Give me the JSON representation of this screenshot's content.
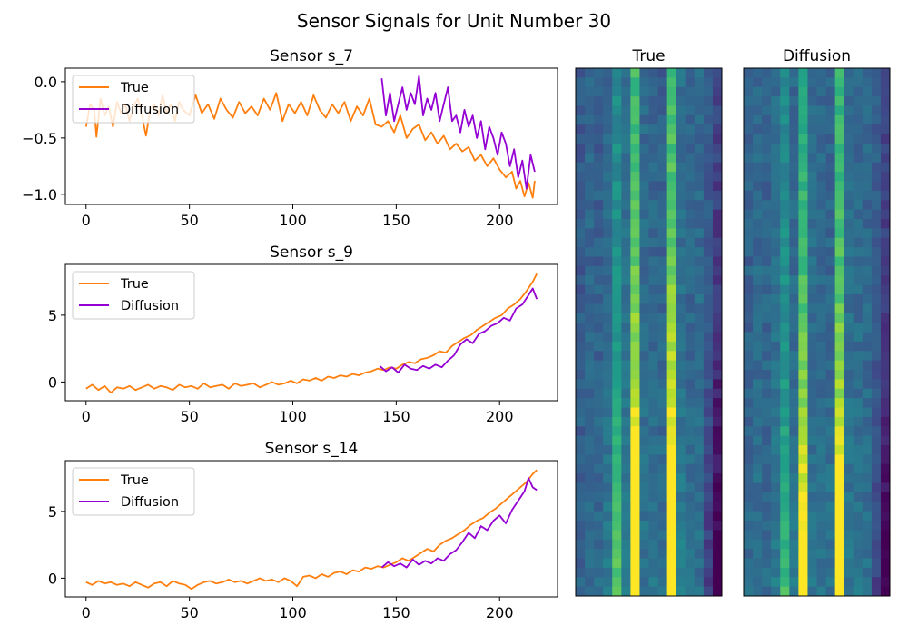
{
  "figure": {
    "suptitle": "Sensor Signals for Unit Number 30"
  },
  "chart_data": [
    {
      "type": "line",
      "title": "Sensor s_7",
      "xlabel": "",
      "ylabel": "",
      "xlim": [
        -10,
        228
      ],
      "ylim": [
        -1.09,
        0.12
      ],
      "xticks": [
        0,
        50,
        100,
        150,
        200
      ],
      "yticks": [
        0.0,
        -0.5,
        -1.0
      ],
      "ytick_labels": [
        "0.0",
        "−0.5",
        "−1.0"
      ],
      "grid": false,
      "legend": "top-left",
      "series": [
        {
          "name": "True",
          "color": "#ff7f0e",
          "x": [
            0,
            2,
            4,
            5,
            7,
            9,
            11,
            13,
            15,
            17,
            19,
            21,
            23,
            25,
            27,
            29,
            31,
            33,
            35,
            37,
            39,
            41,
            43,
            45,
            47,
            50,
            53,
            56,
            59,
            62,
            65,
            68,
            71,
            74,
            77,
            80,
            83,
            86,
            89,
            92,
            95,
            98,
            101,
            104,
            107,
            110,
            113,
            116,
            119,
            122,
            125,
            128,
            131,
            134,
            137,
            140,
            143,
            146,
            149,
            152,
            155,
            158,
            161,
            164,
            167,
            170,
            173,
            176,
            179,
            182,
            185,
            188,
            191,
            194,
            197,
            200,
            203,
            206,
            208,
            210,
            212,
            214,
            216,
            217
          ],
          "y": [
            -0.4,
            -0.2,
            -0.25,
            -0.49,
            -0.15,
            -0.3,
            -0.22,
            -0.4,
            -0.18,
            -0.28,
            -0.2,
            -0.35,
            -0.22,
            -0.15,
            -0.3,
            -0.48,
            -0.25,
            -0.2,
            -0.3,
            -0.12,
            -0.28,
            -0.2,
            -0.35,
            -0.18,
            -0.25,
            -0.3,
            -0.12,
            -0.28,
            -0.2,
            -0.33,
            -0.15,
            -0.25,
            -0.32,
            -0.18,
            -0.28,
            -0.22,
            -0.3,
            -0.15,
            -0.25,
            -0.1,
            -0.35,
            -0.2,
            -0.28,
            -0.18,
            -0.3,
            -0.12,
            -0.25,
            -0.32,
            -0.2,
            -0.28,
            -0.18,
            -0.35,
            -0.22,
            -0.3,
            -0.15,
            -0.38,
            -0.4,
            -0.35,
            -0.45,
            -0.3,
            -0.5,
            -0.42,
            -0.38,
            -0.52,
            -0.45,
            -0.55,
            -0.48,
            -0.6,
            -0.55,
            -0.62,
            -0.58,
            -0.7,
            -0.65,
            -0.75,
            -0.68,
            -0.78,
            -0.85,
            -0.8,
            -0.95,
            -0.88,
            -1.02,
            -0.9,
            -1.03,
            -0.88
          ]
        },
        {
          "name": "Diffusion",
          "color": "#9400d3",
          "x": [
            143,
            145,
            147,
            149,
            151,
            153,
            155,
            157,
            159,
            161,
            163,
            165,
            167,
            169,
            171,
            173,
            175,
            177,
            179,
            181,
            183,
            185,
            187,
            189,
            191,
            193,
            195,
            197,
            199,
            201,
            203,
            205,
            207,
            209,
            211,
            213,
            215,
            217
          ],
          "y": [
            0.03,
            -0.3,
            -0.1,
            -0.35,
            -0.2,
            -0.05,
            -0.25,
            -0.1,
            -0.2,
            0.05,
            -0.3,
            -0.15,
            -0.25,
            -0.1,
            -0.35,
            -0.2,
            -0.05,
            -0.35,
            -0.3,
            -0.45,
            -0.25,
            -0.4,
            -0.3,
            -0.5,
            -0.35,
            -0.6,
            -0.4,
            -0.5,
            -0.65,
            -0.45,
            -0.55,
            -0.75,
            -0.6,
            -0.85,
            -0.7,
            -0.95,
            -0.65,
            -0.8
          ]
        }
      ]
    },
    {
      "type": "line",
      "title": "Sensor s_9",
      "xlabel": "",
      "ylabel": "",
      "xlim": [
        -10,
        228
      ],
      "ylim": [
        -1.4,
        8.8
      ],
      "xticks": [
        0,
        50,
        100,
        150,
        200
      ],
      "yticks": [
        5,
        0
      ],
      "ytick_labels": [
        "5",
        "0"
      ],
      "grid": false,
      "legend": "top-left",
      "series": [
        {
          "name": "True",
          "color": "#ff7f0e",
          "x": [
            0,
            3,
            6,
            9,
            12,
            15,
            18,
            21,
            24,
            27,
            30,
            33,
            36,
            39,
            42,
            45,
            48,
            51,
            54,
            57,
            60,
            63,
            66,
            69,
            72,
            75,
            78,
            81,
            84,
            87,
            90,
            93,
            96,
            99,
            102,
            105,
            108,
            111,
            114,
            117,
            120,
            123,
            126,
            129,
            132,
            135,
            138,
            141,
            144,
            147,
            150,
            153,
            156,
            159,
            162,
            165,
            168,
            171,
            174,
            177,
            180,
            183,
            186,
            189,
            192,
            195,
            198,
            201,
            204,
            207,
            210,
            213,
            216,
            218
          ],
          "y": [
            -0.5,
            -0.2,
            -0.6,
            -0.3,
            -0.8,
            -0.4,
            -0.5,
            -0.3,
            -0.6,
            -0.4,
            -0.2,
            -0.5,
            -0.3,
            -0.4,
            -0.6,
            -0.2,
            -0.4,
            -0.3,
            -0.5,
            -0.1,
            -0.4,
            -0.3,
            -0.2,
            -0.5,
            -0.1,
            -0.3,
            -0.2,
            -0.1,
            -0.4,
            -0.2,
            0.0,
            -0.2,
            -0.1,
            0.1,
            -0.1,
            0.2,
            0.1,
            0.3,
            0.1,
            0.4,
            0.3,
            0.5,
            0.4,
            0.6,
            0.5,
            0.7,
            0.8,
            1.0,
            0.9,
            1.1,
            1.0,
            1.3,
            1.5,
            1.4,
            1.7,
            1.8,
            2.0,
            2.3,
            2.2,
            2.7,
            3.0,
            3.3,
            3.5,
            3.9,
            4.2,
            4.5,
            4.8,
            5.0,
            5.5,
            5.8,
            6.2,
            6.8,
            7.5,
            8.1
          ]
        },
        {
          "name": "Diffusion",
          "color": "#9400d3",
          "x": [
            142,
            145,
            148,
            151,
            154,
            157,
            160,
            163,
            166,
            169,
            172,
            175,
            178,
            181,
            184,
            187,
            190,
            193,
            196,
            199,
            202,
            205,
            208,
            211,
            214,
            216,
            218
          ],
          "y": [
            1.2,
            0.8,
            1.1,
            0.7,
            1.3,
            1.0,
            0.9,
            1.2,
            1.0,
            1.3,
            1.1,
            1.6,
            2.0,
            2.8,
            3.2,
            2.9,
            3.6,
            3.8,
            4.2,
            4.4,
            4.8,
            4.6,
            5.5,
            5.8,
            6.5,
            7.0,
            6.2
          ]
        }
      ]
    },
    {
      "type": "line",
      "title": "Sensor s_14",
      "xlabel": "",
      "ylabel": "",
      "xlim": [
        -10,
        228
      ],
      "ylim": [
        -1.4,
        8.8
      ],
      "xticks": [
        0,
        50,
        100,
        150,
        200
      ],
      "yticks": [
        5,
        0
      ],
      "ytick_labels": [
        "5",
        "0"
      ],
      "grid": false,
      "legend": "top-left",
      "series": [
        {
          "name": "True",
          "color": "#ff7f0e",
          "x": [
            0,
            3,
            6,
            9,
            12,
            15,
            18,
            21,
            24,
            27,
            30,
            33,
            36,
            39,
            42,
            45,
            48,
            51,
            54,
            57,
            60,
            63,
            66,
            69,
            72,
            75,
            78,
            81,
            84,
            87,
            90,
            93,
            96,
            99,
            102,
            105,
            108,
            111,
            114,
            117,
            120,
            123,
            126,
            129,
            132,
            135,
            138,
            141,
            144,
            147,
            150,
            153,
            156,
            159,
            162,
            165,
            168,
            171,
            174,
            177,
            180,
            183,
            186,
            189,
            192,
            195,
            198,
            201,
            204,
            207,
            210,
            213,
            216,
            218
          ],
          "y": [
            -0.3,
            -0.5,
            -0.2,
            -0.4,
            -0.3,
            -0.5,
            -0.4,
            -0.6,
            -0.3,
            -0.5,
            -0.7,
            -0.4,
            -0.3,
            -0.6,
            -0.2,
            -0.4,
            -0.5,
            -0.8,
            -0.5,
            -0.3,
            -0.2,
            -0.4,
            -0.3,
            -0.1,
            -0.3,
            -0.2,
            -0.4,
            -0.2,
            0.0,
            -0.2,
            -0.1,
            -0.3,
            0.0,
            -0.2,
            -0.6,
            0.1,
            0.2,
            0.0,
            0.3,
            0.1,
            0.4,
            0.5,
            0.3,
            0.6,
            0.5,
            0.8,
            0.7,
            0.9,
            0.8,
            1.0,
            1.2,
            1.5,
            1.3,
            1.6,
            1.9,
            2.2,
            2.0,
            2.5,
            2.8,
            3.0,
            3.3,
            3.6,
            4.0,
            4.3,
            4.5,
            4.9,
            5.2,
            5.6,
            6.0,
            6.4,
            6.8,
            7.2,
            7.8,
            8.1
          ]
        },
        {
          "name": "Diffusion",
          "color": "#9400d3",
          "x": [
            143,
            146,
            149,
            152,
            155,
            158,
            161,
            164,
            167,
            170,
            173,
            176,
            179,
            182,
            185,
            188,
            191,
            194,
            197,
            200,
            203,
            206,
            209,
            212,
            214,
            216,
            218
          ],
          "y": [
            0.8,
            1.2,
            0.9,
            1.1,
            0.8,
            1.4,
            1.0,
            1.3,
            1.1,
            1.5,
            1.3,
            1.8,
            2.1,
            2.7,
            3.4,
            3.0,
            3.9,
            3.6,
            4.3,
            4.7,
            4.1,
            5.1,
            5.8,
            6.5,
            7.5,
            6.8,
            6.6
          ]
        }
      ]
    },
    {
      "type": "heatmap",
      "title": "True",
      "colormap": "viridis",
      "grid": false,
      "ncols": 16,
      "nrows": 56,
      "column_means": [
        0.28,
        0.32,
        0.3,
        0.34,
        0.48,
        0.36,
        0.68,
        0.34,
        0.32,
        0.3,
        0.7,
        0.36,
        0.32,
        0.34,
        0.3,
        0.2
      ],
      "trend": [
        0.02,
        0.01,
        0.02,
        0.03,
        0.12,
        0.03,
        0.28,
        0.02,
        0.03,
        0.04,
        0.28,
        0.03,
        0.02,
        0.01,
        -0.06,
        -0.12
      ],
      "noise": 0.06
    },
    {
      "type": "heatmap",
      "title": "Diffusion",
      "colormap": "viridis",
      "grid": false,
      "ncols": 16,
      "nrows": 56,
      "column_means": [
        0.3,
        0.33,
        0.32,
        0.35,
        0.46,
        0.34,
        0.62,
        0.35,
        0.33,
        0.32,
        0.65,
        0.35,
        0.34,
        0.33,
        0.3,
        0.22
      ],
      "trend": [
        0.02,
        0.02,
        0.01,
        0.03,
        0.1,
        0.03,
        0.24,
        0.02,
        0.02,
        0.03,
        0.24,
        0.02,
        0.02,
        0.02,
        -0.05,
        -0.12
      ],
      "noise": 0.06
    }
  ]
}
